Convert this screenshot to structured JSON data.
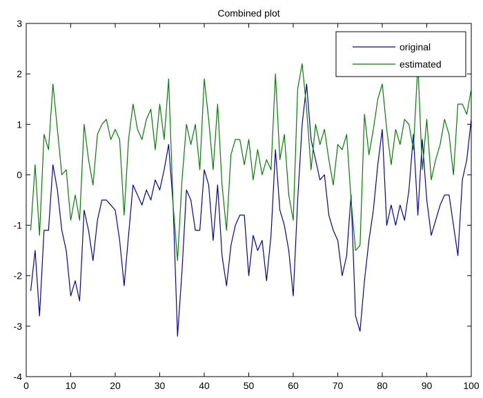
{
  "chart_data": {
    "type": "line",
    "title": "Combined plot",
    "xlabel": "",
    "ylabel": "",
    "xlim": [
      0,
      100
    ],
    "ylim": [
      -4,
      3
    ],
    "xticks": [
      0,
      10,
      20,
      30,
      40,
      50,
      60,
      70,
      80,
      90,
      100
    ],
    "yticks": [
      -4,
      -3,
      -2,
      -1,
      0,
      1,
      2,
      3
    ],
    "grid": false,
    "legend_position": "top-right",
    "series": [
      {
        "name": "original",
        "color": "#0000aa",
        "x": [
          1,
          2,
          3,
          4,
          5,
          6,
          7,
          8,
          9,
          10,
          11,
          12,
          13,
          14,
          15,
          16,
          17,
          18,
          19,
          20,
          21,
          22,
          23,
          24,
          25,
          26,
          27,
          28,
          29,
          30,
          31,
          32,
          33,
          34,
          35,
          36,
          37,
          38,
          39,
          40,
          41,
          42,
          43,
          44,
          45,
          46,
          47,
          48,
          49,
          50,
          51,
          52,
          53,
          54,
          55,
          56,
          57,
          58,
          59,
          60,
          61,
          62,
          63,
          64,
          65,
          66,
          67,
          68,
          69,
          70,
          71,
          72,
          73,
          74,
          75,
          76,
          77,
          78,
          79,
          80,
          81,
          82,
          83,
          84,
          85,
          86,
          87,
          88,
          89,
          90,
          91,
          92,
          93,
          94,
          95,
          96,
          97,
          98,
          99,
          100
        ],
        "values": [
          -2.3,
          -1.5,
          -2.8,
          -1.1,
          -1.1,
          0.2,
          -0.3,
          -1.1,
          -1.5,
          -2.4,
          -2.1,
          -2.5,
          -0.7,
          -1.1,
          -1.7,
          -0.9,
          -0.5,
          -0.5,
          -0.6,
          -0.7,
          -1.3,
          -2.2,
          -1.2,
          -0.2,
          -0.4,
          -0.6,
          -0.3,
          -0.5,
          -0.1,
          -0.3,
          0.1,
          0.6,
          -0.6,
          -3.2,
          -1.9,
          -0.3,
          -0.5,
          -1.1,
          -1.1,
          0.1,
          -0.2,
          -1.3,
          -0.2,
          -1.6,
          -2.2,
          -1.4,
          -1.0,
          -0.8,
          -0.8,
          -2.0,
          -1.2,
          -1.5,
          -1.3,
          -2.1,
          -1.2,
          0.5,
          -0.7,
          -1.0,
          -1.5,
          -2.4,
          -0.5,
          1.0,
          1.8,
          0.7,
          0.3,
          -0.1,
          0.0,
          -0.8,
          -1.1,
          -1.3,
          -2.0,
          -1.6,
          -0.4,
          -2.8,
          -3.1,
          -2.1,
          -1.3,
          -0.7,
          0.2,
          0.9,
          -1.0,
          -0.6,
          -1.0,
          -0.6,
          -0.9,
          -0.3,
          0.8,
          -0.8,
          0.7,
          -0.5,
          -1.2,
          -0.9,
          -0.6,
          -0.4,
          -0.4,
          -1.0,
          -1.6,
          -0.1,
          0.3,
          1.1
        ]
      },
      {
        "name": "estimated",
        "color": "#007f00",
        "x": [
          1,
          2,
          3,
          4,
          5,
          6,
          7,
          8,
          9,
          10,
          11,
          12,
          13,
          14,
          15,
          16,
          17,
          18,
          19,
          20,
          21,
          22,
          23,
          24,
          25,
          26,
          27,
          28,
          29,
          30,
          31,
          32,
          33,
          34,
          35,
          36,
          37,
          38,
          39,
          40,
          41,
          42,
          43,
          44,
          45,
          46,
          47,
          48,
          49,
          50,
          51,
          52,
          53,
          54,
          55,
          56,
          57,
          58,
          59,
          60,
          61,
          62,
          63,
          64,
          65,
          66,
          67,
          68,
          69,
          70,
          71,
          72,
          73,
          74,
          75,
          76,
          77,
          78,
          79,
          80,
          81,
          82,
          83,
          84,
          85,
          86,
          87,
          88,
          89,
          90,
          91,
          92,
          93,
          94,
          95,
          96,
          97,
          98,
          99,
          100
        ],
        "values": [
          -1.1,
          0.2,
          -1.2,
          0.8,
          0.5,
          1.8,
          0.9,
          0.0,
          0.1,
          -0.9,
          -0.4,
          -0.9,
          1.0,
          0.3,
          -0.2,
          0.8,
          1.0,
          1.1,
          0.7,
          0.9,
          0.7,
          -0.8,
          0.7,
          1.4,
          0.9,
          0.7,
          1.1,
          1.3,
          0.5,
          1.4,
          0.7,
          1.9,
          -0.6,
          -1.7,
          -0.1,
          1.0,
          0.6,
          1.0,
          0.1,
          1.9,
          1.1,
          0.1,
          1.4,
          -0.2,
          -1.1,
          0.4,
          0.7,
          0.7,
          0.2,
          0.7,
          -0.1,
          0.5,
          0.0,
          0.3,
          0.1,
          2.0,
          0.3,
          0.8,
          -0.4,
          -0.9,
          1.7,
          2.2,
          1.3,
          0.1,
          1.0,
          0.6,
          0.9,
          0.3,
          -0.2,
          0.6,
          0.5,
          0.8,
          -0.5,
          -1.5,
          -1.4,
          1.2,
          0.4,
          0.9,
          1.5,
          1.8,
          0.9,
          0.2,
          0.9,
          0.6,
          1.1,
          1.0,
          0.5,
          2.2,
          0.1,
          1.1,
          -0.1,
          0.3,
          0.6,
          1.1,
          0.8,
          0.0,
          1.4,
          1.4,
          1.2,
          1.7
        ]
      }
    ]
  }
}
